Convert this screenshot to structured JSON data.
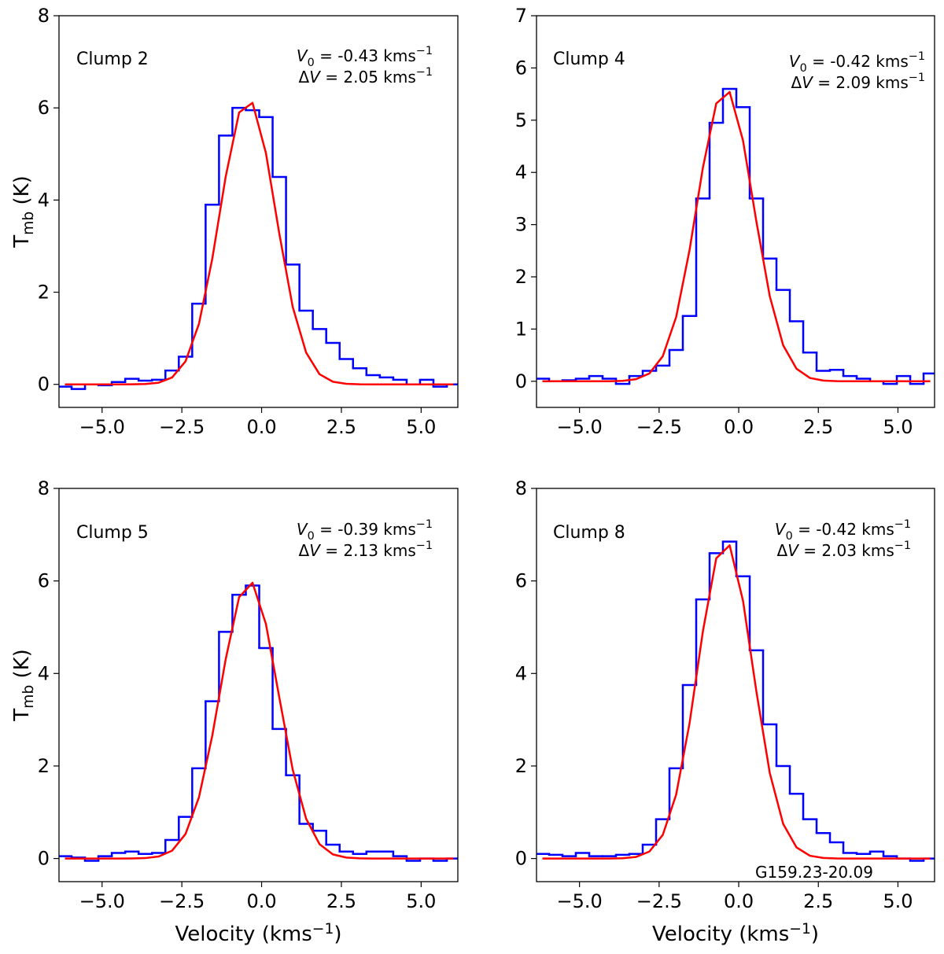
{
  "chart_data": [
    {
      "type": "line",
      "title": "Clump 2",
      "annotation": [
        [
          "V",
          "0",
          " = -0.43 kms",
          "−1"
        ],
        [
          "Δ",
          "V",
          " = 2.05 kms",
          "−1"
        ]
      ],
      "ylabel": [
        "T",
        "mb",
        " (K)"
      ],
      "x": [
        -6.165,
        -5.745,
        -5.325,
        -4.905,
        -4.485,
        -4.065,
        -3.645,
        -3.225,
        -2.805,
        -2.385,
        -1.965,
        -1.545,
        -1.125,
        -0.705,
        -0.285,
        0.135,
        0.555,
        0.975,
        1.395,
        1.815,
        2.235,
        2.655,
        3.075,
        3.495,
        3.915,
        4.335,
        4.755,
        5.175,
        5.595,
        6.015
      ],
      "series": [
        {
          "color": "#0000ff",
          "drawstyle": "steps-mid",
          "values": [
            -0.05,
            -0.1,
            0.0,
            -0.02,
            0.05,
            0.12,
            0.08,
            0.1,
            0.3,
            0.6,
            1.75,
            3.9,
            5.4,
            6.0,
            5.95,
            5.8,
            4.5,
            2.6,
            1.6,
            1.2,
            0.9,
            0.55,
            0.35,
            0.2,
            0.15,
            0.1,
            0.0,
            0.1,
            -0.05,
            0.0
          ]
        },
        {
          "color": "#ff0000",
          "drawstyle": "default",
          "values": [
            0,
            0,
            0,
            0,
            0,
            0.001,
            0.007,
            0.036,
            0.15,
            0.5,
            1.31,
            2.73,
            4.51,
            5.9,
            6.11,
            5.02,
            3.27,
            1.68,
            0.69,
            0.22,
            0.057,
            0.012,
            0.002,
            0,
            0,
            0,
            0,
            0,
            0,
            0
          ]
        }
      ],
      "xlim": [
        -6.35,
        6.15
      ],
      "ylim": [
        -0.5,
        8
      ],
      "xticks": [
        {
          "value": -5,
          "label": "−5.0"
        },
        {
          "value": -2.5,
          "label": "−2.5"
        },
        {
          "value": 0,
          "label": "0.0"
        },
        {
          "value": 2.5,
          "label": "2.5"
        },
        {
          "value": 5,
          "label": "5.0"
        }
      ],
      "yticks": [
        0,
        2,
        4,
        6,
        8
      ]
    },
    {
      "type": "line",
      "title": "Clump 4",
      "annotation": [
        [
          "V",
          "0",
          " = -0.42 kms",
          "−1"
        ],
        [
          "Δ",
          "V",
          " = 2.09 kms",
          "−1"
        ]
      ],
      "x": [
        -6.165,
        -5.745,
        -5.325,
        -4.905,
        -4.485,
        -4.065,
        -3.645,
        -3.225,
        -2.805,
        -2.385,
        -1.965,
        -1.545,
        -1.125,
        -0.705,
        -0.285,
        0.135,
        0.555,
        0.975,
        1.395,
        1.815,
        2.235,
        2.655,
        3.075,
        3.495,
        3.915,
        4.335,
        4.755,
        5.175,
        5.595,
        6.015
      ],
      "series": [
        {
          "color": "#0000ff",
          "drawstyle": "steps-mid",
          "values": [
            0.05,
            0.0,
            0.02,
            0.05,
            0.1,
            0.05,
            -0.05,
            0.1,
            0.2,
            0.3,
            0.6,
            1.25,
            3.5,
            4.95,
            5.6,
            5.25,
            3.5,
            2.35,
            1.75,
            1.15,
            0.55,
            0.2,
            0.22,
            0.1,
            0.05,
            0.0,
            -0.05,
            0.1,
            -0.05,
            0.15
          ]
        },
        {
          "color": "#ff0000",
          "drawstyle": "default",
          "values": [
            0,
            0,
            0,
            0,
            0,
            0,
            0.008,
            0.04,
            0.15,
            0.48,
            1.23,
            2.51,
            4.09,
            5.32,
            5.54,
            4.61,
            3.06,
            1.63,
            0.69,
            0.24,
            0.064,
            0.014,
            0.002,
            0,
            0,
            0,
            0,
            0,
            0,
            0
          ]
        }
      ],
      "xlim": [
        -6.35,
        6.15
      ],
      "ylim": [
        -0.5,
        7
      ],
      "xticks": [
        {
          "value": -5,
          "label": "−5.0"
        },
        {
          "value": -2.5,
          "label": "−2.5"
        },
        {
          "value": 0,
          "label": "0.0"
        },
        {
          "value": 2.5,
          "label": "2.5"
        },
        {
          "value": 5,
          "label": "5.0"
        }
      ],
      "yticks": [
        0,
        1,
        2,
        3,
        4,
        5,
        6,
        7
      ]
    },
    {
      "type": "line",
      "title": "Clump 5",
      "annotation": [
        [
          "V",
          "0",
          " = -0.39 kms",
          "−1"
        ],
        [
          "Δ",
          "V",
          " = 2.13 kms",
          "−1"
        ]
      ],
      "ylabel": [
        "T",
        "mb",
        " (K)"
      ],
      "xlabel": [
        "Velocity (kms",
        "−1",
        ")"
      ],
      "x": [
        -6.165,
        -5.745,
        -5.325,
        -4.905,
        -4.485,
        -4.065,
        -3.645,
        -3.225,
        -2.805,
        -2.385,
        -1.965,
        -1.545,
        -1.125,
        -0.705,
        -0.285,
        0.135,
        0.555,
        0.975,
        1.395,
        1.815,
        2.235,
        2.655,
        3.075,
        3.495,
        3.915,
        4.335,
        4.755,
        5.175,
        5.595,
        6.015
      ],
      "series": [
        {
          "color": "#0000ff",
          "drawstyle": "steps-mid",
          "values": [
            0.05,
            0.02,
            -0.05,
            0.05,
            0.12,
            0.15,
            0.1,
            0.12,
            0.4,
            0.9,
            1.95,
            3.4,
            4.9,
            5.7,
            5.9,
            4.55,
            2.8,
            1.8,
            0.75,
            0.6,
            0.3,
            0.15,
            0.1,
            0.15,
            0.15,
            0.05,
            -0.05,
            0.0,
            -0.05,
            0.0
          ]
        },
        {
          "color": "#ff0000",
          "drawstyle": "default",
          "values": [
            0,
            0,
            0,
            0,
            0,
            0.002,
            0.009,
            0.044,
            0.17,
            0.53,
            1.32,
            2.66,
            4.31,
            5.65,
            5.96,
            5.07,
            3.48,
            1.92,
            0.86,
            0.31,
            0.089,
            0.021,
            0.004,
            0,
            0,
            0,
            0,
            0,
            0,
            0
          ]
        }
      ],
      "xlim": [
        -6.35,
        6.15
      ],
      "ylim": [
        -0.5,
        8
      ],
      "xticks": [
        {
          "value": -5,
          "label": "−5.0"
        },
        {
          "value": -2.5,
          "label": "−2.5"
        },
        {
          "value": 0,
          "label": "0.0"
        },
        {
          "value": 2.5,
          "label": "2.5"
        },
        {
          "value": 5,
          "label": "5.0"
        }
      ],
      "yticks": [
        0,
        2,
        4,
        6,
        8
      ]
    },
    {
      "type": "line",
      "title": "Clump 8",
      "annotation": [
        [
          "V",
          "0",
          " = -0.42 kms",
          "−1"
        ],
        [
          "Δ",
          "V",
          " = 2.03 kms",
          "−1"
        ]
      ],
      "note": "G159.23-20.09",
      "xlabel": [
        "Velocity (kms",
        "−1",
        ")"
      ],
      "x": [
        -6.165,
        -5.745,
        -5.325,
        -4.905,
        -4.485,
        -4.065,
        -3.645,
        -3.225,
        -2.805,
        -2.385,
        -1.965,
        -1.545,
        -1.125,
        -0.705,
        -0.285,
        0.135,
        0.555,
        0.975,
        1.395,
        1.815,
        2.235,
        2.655,
        3.075,
        3.495,
        3.915,
        4.335,
        4.755,
        5.175,
        5.595,
        6.015
      ],
      "series": [
        {
          "color": "#0000ff",
          "drawstyle": "steps-mid",
          "values": [
            0.1,
            0.08,
            0.05,
            0.12,
            0.05,
            0.05,
            0.08,
            0.1,
            0.3,
            0.85,
            1.95,
            3.75,
            5.6,
            6.6,
            6.85,
            6.1,
            4.5,
            2.9,
            2.0,
            1.4,
            0.85,
            0.55,
            0.35,
            0.12,
            0.1,
            0.15,
            0.05,
            0.0,
            -0.05,
            0.0
          ]
        },
        {
          "color": "#ff0000",
          "drawstyle": "default",
          "values": [
            0,
            0,
            0,
            0,
            0,
            0,
            0.006,
            0.034,
            0.15,
            0.51,
            1.38,
            2.92,
            4.91,
            6.49,
            6.77,
            5.57,
            3.61,
            1.85,
            0.75,
            0.24,
            0.06,
            0.012,
            0.002,
            0,
            0,
            0,
            0,
            0,
            0,
            0
          ]
        }
      ],
      "xlim": [
        -6.35,
        6.15
      ],
      "ylim": [
        -0.5,
        8
      ],
      "xticks": [
        {
          "value": -5,
          "label": "−5.0"
        },
        {
          "value": -2.5,
          "label": "−2.5"
        },
        {
          "value": 0,
          "label": "0.0"
        },
        {
          "value": 2.5,
          "label": "2.5"
        },
        {
          "value": 5,
          "label": "5.0"
        }
      ],
      "yticks": [
        0,
        2,
        4,
        6,
        8
      ]
    }
  ]
}
